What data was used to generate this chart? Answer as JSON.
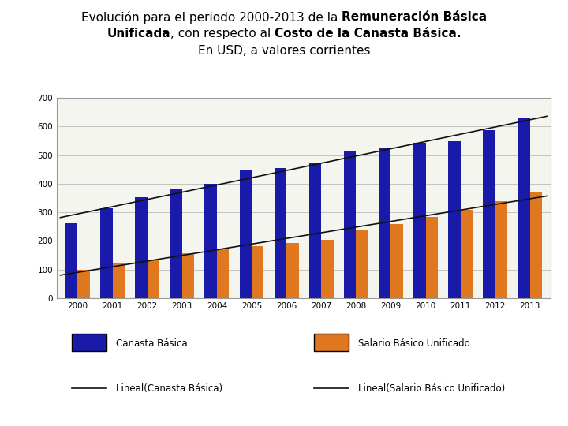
{
  "years": [
    2000,
    2001,
    2002,
    2003,
    2004,
    2005,
    2006,
    2007,
    2008,
    2009,
    2010,
    2011,
    2012,
    2013
  ],
  "canasta_basica": [
    261,
    314,
    353,
    383,
    399,
    446,
    454,
    472,
    512,
    528,
    544,
    549,
    587,
    628
  ],
  "salario_basico": [
    100,
    121,
    135,
    158,
    170,
    182,
    194,
    203,
    238,
    260,
    285,
    310,
    340,
    370
  ],
  "blue_color": "#1a1aaa",
  "orange_color": "#E07820",
  "trend_color": "#111111",
  "background_color": "#ffffff",
  "chart_bg": "#f5f5f0",
  "ylim": [
    0,
    700
  ],
  "yticks": [
    0,
    100,
    200,
    300,
    400,
    500,
    600,
    700
  ],
  "legend_canasta": "Canasta Básica",
  "legend_salario": "Salario Básico Unificado",
  "legend_lineal_canasta": "Lineal(Canasta Básica)",
  "legend_lineal_salario": "Lineal(Salario Básico Unificado)",
  "title_parts_line1": [
    [
      "Evolución para el periodo 2000-2013 de la ",
      "normal"
    ],
    [
      "Remuneración Básica",
      "bold"
    ]
  ],
  "title_parts_line2": [
    [
      "Unificada",
      "bold"
    ],
    [
      ", con respecto al ",
      "normal"
    ],
    [
      "Costo de la Canasta Básica.",
      "bold"
    ]
  ],
  "title_parts_line3": [
    [
      "En USD, a valores corrientes",
      "normal"
    ]
  ]
}
